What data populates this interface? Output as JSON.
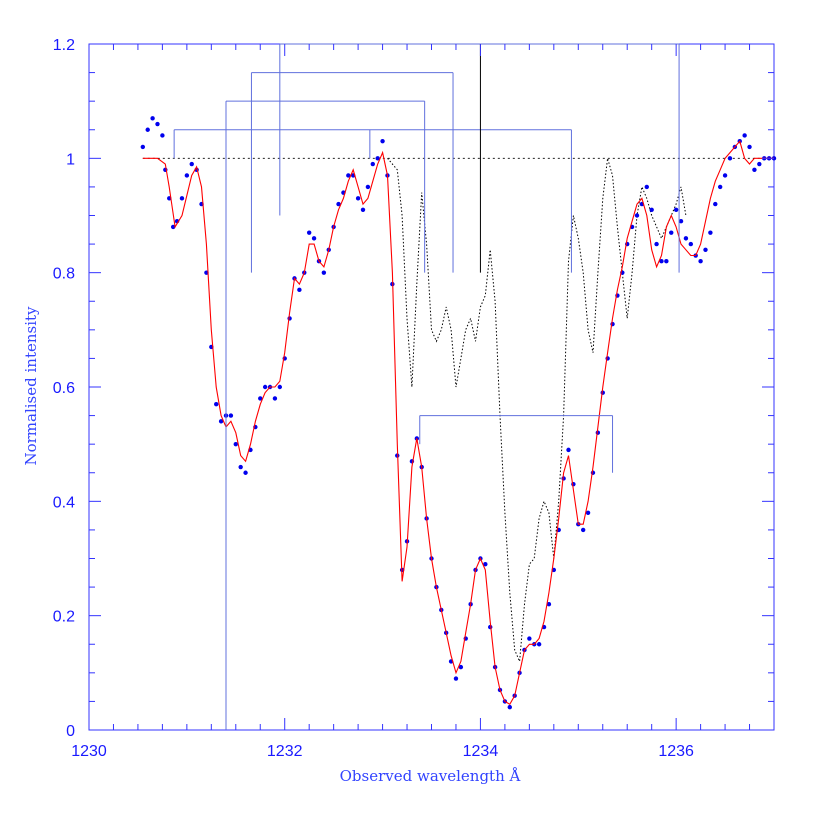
{
  "chart_data": {
    "type": "line",
    "title": "",
    "xlabel": "Observed wavelength Å",
    "ylabel": "Normalised intensity",
    "xlim": [
      1230,
      1237
    ],
    "ylim": [
      0,
      1.2
    ],
    "x_ticks": [
      1230,
      1232,
      1234,
      1236
    ],
    "x_tick_labels": [
      "1230",
      "1232",
      "1234",
      "1236"
    ],
    "y_ticks": [
      0,
      0.2,
      0.4,
      0.6,
      0.8,
      1,
      1.2
    ],
    "y_tick_labels": [
      "0",
      "0.2",
      "0.4",
      "0.6",
      "0.8",
      "1",
      "1.2"
    ],
    "continuum_level": 1.0,
    "colors": {
      "axes": "#3333ff",
      "tick_labels": "#1a1aff",
      "data_points": "#0000ee",
      "fit_line": "#ff0000",
      "dotted_line": "#000000",
      "markers_blue": "#6070dd",
      "markers_black": "#000000"
    },
    "series": [
      {
        "style": "points",
        "x": [
          1230.55,
          1230.6,
          1230.65,
          1230.7,
          1230.75,
          1230.78,
          1230.82,
          1230.86,
          1230.9,
          1230.95,
          1231.0,
          1231.05,
          1231.1,
          1231.15,
          1231.2,
          1231.25,
          1231.3,
          1231.35,
          1231.4,
          1231.45,
          1231.5,
          1231.55,
          1231.6,
          1231.65,
          1231.7,
          1231.75,
          1231.8,
          1231.85,
          1231.9,
          1231.95,
          1232.0,
          1232.05,
          1232.1,
          1232.15,
          1232.2,
          1232.25,
          1232.3,
          1232.35,
          1232.4,
          1232.45,
          1232.5,
          1232.55,
          1232.6,
          1232.65,
          1232.7,
          1232.75,
          1232.8,
          1232.85,
          1232.9,
          1232.95,
          1233.0,
          1233.05,
          1233.1,
          1233.15,
          1233.2,
          1233.25,
          1233.3,
          1233.35,
          1233.4,
          1233.45,
          1233.5,
          1233.55,
          1233.6,
          1233.65,
          1233.7,
          1233.75,
          1233.8,
          1233.85,
          1233.9,
          1233.95,
          1234.0,
          1234.05,
          1234.1,
          1234.15,
          1234.2,
          1234.25,
          1234.3,
          1234.35,
          1234.4,
          1234.45,
          1234.5,
          1234.55,
          1234.6,
          1234.65,
          1234.7,
          1234.75,
          1234.8,
          1234.85,
          1234.9,
          1234.95,
          1235.0,
          1235.05,
          1235.1,
          1235.15,
          1235.2,
          1235.25,
          1235.3,
          1235.35,
          1235.4,
          1235.45,
          1235.5,
          1235.55,
          1235.6,
          1235.65,
          1235.7,
          1235.75,
          1235.8,
          1235.85,
          1235.9,
          1235.95,
          1236.0,
          1236.05,
          1236.1,
          1236.15,
          1236.2,
          1236.25,
          1236.3,
          1236.35,
          1236.4,
          1236.45,
          1236.5,
          1236.55,
          1236.6,
          1236.65,
          1236.7,
          1236.75,
          1236.8,
          1236.85,
          1236.9,
          1236.95,
          1237.0
        ],
        "y": [
          1.02,
          1.05,
          1.07,
          1.06,
          1.04,
          0.98,
          0.93,
          0.88,
          0.89,
          0.93,
          0.97,
          0.99,
          0.98,
          0.92,
          0.8,
          0.67,
          0.57,
          0.54,
          0.55,
          0.55,
          0.5,
          0.46,
          0.45,
          0.49,
          0.53,
          0.58,
          0.6,
          0.6,
          0.58,
          0.6,
          0.65,
          0.72,
          0.79,
          0.77,
          0.8,
          0.87,
          0.86,
          0.82,
          0.8,
          0.84,
          0.88,
          0.92,
          0.94,
          0.97,
          0.97,
          0.93,
          0.91,
          0.95,
          0.99,
          1.0,
          1.03,
          0.97,
          0.78,
          0.48,
          0.28,
          0.33,
          0.47,
          0.51,
          0.46,
          0.37,
          0.3,
          0.25,
          0.21,
          0.17,
          0.12,
          0.09,
          0.11,
          0.16,
          0.22,
          0.28,
          0.3,
          0.29,
          0.18,
          0.11,
          0.07,
          0.05,
          0.04,
          0.06,
          0.1,
          0.14,
          0.16,
          0.15,
          0.15,
          0.18,
          0.22,
          0.28,
          0.35,
          0.44,
          0.49,
          0.43,
          0.36,
          0.35,
          0.38,
          0.45,
          0.52,
          0.59,
          0.65,
          0.71,
          0.76,
          0.8,
          0.85,
          0.88,
          0.9,
          0.92,
          0.95,
          0.91,
          0.85,
          0.82,
          0.82,
          0.87,
          0.91,
          0.89,
          0.86,
          0.85,
          0.83,
          0.82,
          0.84,
          0.87,
          0.92,
          0.95,
          0.97,
          1.0,
          1.02,
          1.03,
          1.04,
          1.02,
          0.98,
          0.99,
          1.0,
          1.0,
          1.0
        ]
      },
      {
        "style": "line",
        "x": [
          1230.55,
          1230.7,
          1230.78,
          1230.82,
          1230.88,
          1230.95,
          1231.05,
          1231.1,
          1231.15,
          1231.2,
          1231.25,
          1231.3,
          1231.35,
          1231.4,
          1231.45,
          1231.5,
          1231.55,
          1231.6,
          1231.65,
          1231.7,
          1231.75,
          1231.8,
          1231.85,
          1231.9,
          1231.95,
          1232.0,
          1232.05,
          1232.1,
          1232.15,
          1232.2,
          1232.25,
          1232.3,
          1232.35,
          1232.4,
          1232.45,
          1232.5,
          1232.55,
          1232.6,
          1232.65,
          1232.7,
          1232.75,
          1232.8,
          1232.85,
          1232.9,
          1232.95,
          1233.0,
          1233.05,
          1233.1,
          1233.15,
          1233.2,
          1233.25,
          1233.3,
          1233.35,
          1233.4,
          1233.45,
          1233.5,
          1233.55,
          1233.6,
          1233.65,
          1233.7,
          1233.75,
          1233.8,
          1233.85,
          1233.9,
          1233.95,
          1234.0,
          1234.05,
          1234.1,
          1234.15,
          1234.2,
          1234.25,
          1234.3,
          1234.35,
          1234.4,
          1234.45,
          1234.5,
          1234.55,
          1234.6,
          1234.65,
          1234.7,
          1234.75,
          1234.8,
          1234.85,
          1234.9,
          1234.95,
          1235.0,
          1235.05,
          1235.1,
          1235.15,
          1235.2,
          1235.25,
          1235.3,
          1235.35,
          1235.4,
          1235.45,
          1235.5,
          1235.55,
          1235.6,
          1235.65,
          1235.7,
          1235.75,
          1235.8,
          1235.85,
          1235.9,
          1235.95,
          1236.0,
          1236.05,
          1236.1,
          1236.15,
          1236.2,
          1236.25,
          1236.3,
          1236.35,
          1236.4,
          1236.45,
          1236.5,
          1236.55,
          1236.6,
          1236.65,
          1236.7,
          1236.75,
          1236.8,
          1236.85,
          1236.9,
          1236.95,
          1237.0
        ],
        "y": [
          1.0,
          1.0,
          0.99,
          0.95,
          0.88,
          0.9,
          0.97,
          0.985,
          0.95,
          0.85,
          0.7,
          0.6,
          0.55,
          0.53,
          0.54,
          0.52,
          0.48,
          0.47,
          0.5,
          0.54,
          0.57,
          0.59,
          0.6,
          0.6,
          0.61,
          0.66,
          0.73,
          0.79,
          0.78,
          0.8,
          0.85,
          0.85,
          0.82,
          0.81,
          0.84,
          0.88,
          0.91,
          0.93,
          0.96,
          0.98,
          0.95,
          0.92,
          0.93,
          0.96,
          0.99,
          1.01,
          0.97,
          0.8,
          0.5,
          0.26,
          0.32,
          0.46,
          0.51,
          0.46,
          0.37,
          0.3,
          0.25,
          0.21,
          0.17,
          0.13,
          0.1,
          0.12,
          0.17,
          0.22,
          0.28,
          0.3,
          0.28,
          0.19,
          0.11,
          0.07,
          0.05,
          0.045,
          0.06,
          0.1,
          0.14,
          0.15,
          0.15,
          0.16,
          0.19,
          0.24,
          0.3,
          0.37,
          0.45,
          0.48,
          0.42,
          0.36,
          0.36,
          0.4,
          0.46,
          0.53,
          0.6,
          0.66,
          0.72,
          0.77,
          0.81,
          0.86,
          0.89,
          0.92,
          0.93,
          0.9,
          0.84,
          0.81,
          0.83,
          0.88,
          0.9,
          0.88,
          0.85,
          0.84,
          0.83,
          0.83,
          0.85,
          0.89,
          0.93,
          0.96,
          0.98,
          1.0,
          1.01,
          1.02,
          1.03,
          1.0,
          0.99,
          1.0,
          1.0,
          1.0,
          1.0,
          1.0
        ]
      },
      {
        "style": "dotted",
        "x": [
          1233.05,
          1233.15,
          1233.2,
          1233.25,
          1233.3,
          1233.35,
          1233.4,
          1233.45,
          1233.5,
          1233.55,
          1233.6,
          1233.65,
          1233.7,
          1233.75,
          1233.8,
          1233.85,
          1233.9,
          1233.95,
          1234.0,
          1234.05,
          1234.1,
          1234.15,
          1234.2,
          1234.25,
          1234.3,
          1234.35,
          1234.4,
          1234.45,
          1234.5,
          1234.55,
          1234.6,
          1234.65,
          1234.7,
          1234.75,
          1234.8,
          1234.85,
          1234.9,
          1234.95,
          1235.0,
          1235.05,
          1235.1,
          1235.15,
          1235.2,
          1235.25,
          1235.3,
          1235.35,
          1235.4,
          1235.45,
          1235.5,
          1235.55,
          1235.6,
          1235.65,
          1235.7,
          1235.75,
          1235.8,
          1235.85,
          1235.9,
          1235.95,
          1236.0,
          1236.05,
          1236.1
        ],
        "y": [
          1.0,
          0.98,
          0.9,
          0.72,
          0.6,
          0.78,
          0.94,
          0.85,
          0.7,
          0.68,
          0.7,
          0.74,
          0.7,
          0.6,
          0.65,
          0.7,
          0.72,
          0.68,
          0.74,
          0.76,
          0.84,
          0.75,
          0.55,
          0.38,
          0.24,
          0.14,
          0.12,
          0.22,
          0.29,
          0.3,
          0.37,
          0.4,
          0.38,
          0.3,
          0.4,
          0.55,
          0.82,
          0.9,
          0.86,
          0.8,
          0.7,
          0.66,
          0.8,
          0.93,
          1.0,
          0.97,
          0.88,
          0.8,
          0.72,
          0.8,
          0.9,
          0.95,
          0.93,
          0.9,
          0.88,
          0.86,
          0.88,
          0.9,
          0.92,
          0.95,
          0.9
        ]
      }
    ],
    "annotations": {
      "line_markers": [
        {
          "top": 1.05,
          "x": [
            1230.87,
            1232.87,
            1234.93
          ],
          "color": "blue"
        },
        {
          "top": 1.1,
          "x": [
            1231.4,
            1233.43
          ],
          "color": "blue"
        },
        {
          "top": 1.15,
          "x": [
            1231.66,
            1233.72
          ],
          "color": "blue"
        },
        {
          "top": 1.2,
          "x": [
            1231.95,
            1236.03
          ],
          "color": "blue"
        },
        {
          "top": 1.2,
          "x": [
            1234.0
          ],
          "color": "black"
        },
        {
          "top": 0.55,
          "x": [
            1233.38,
            1235.35
          ],
          "color": "blue"
        }
      ],
      "marker_bottoms": [
        1.0,
        1.0,
        0.8,
        0.0,
        0.8,
        0.8,
        0.8,
        0.9,
        0.8,
        0.8,
        0.5,
        0.45
      ]
    }
  }
}
